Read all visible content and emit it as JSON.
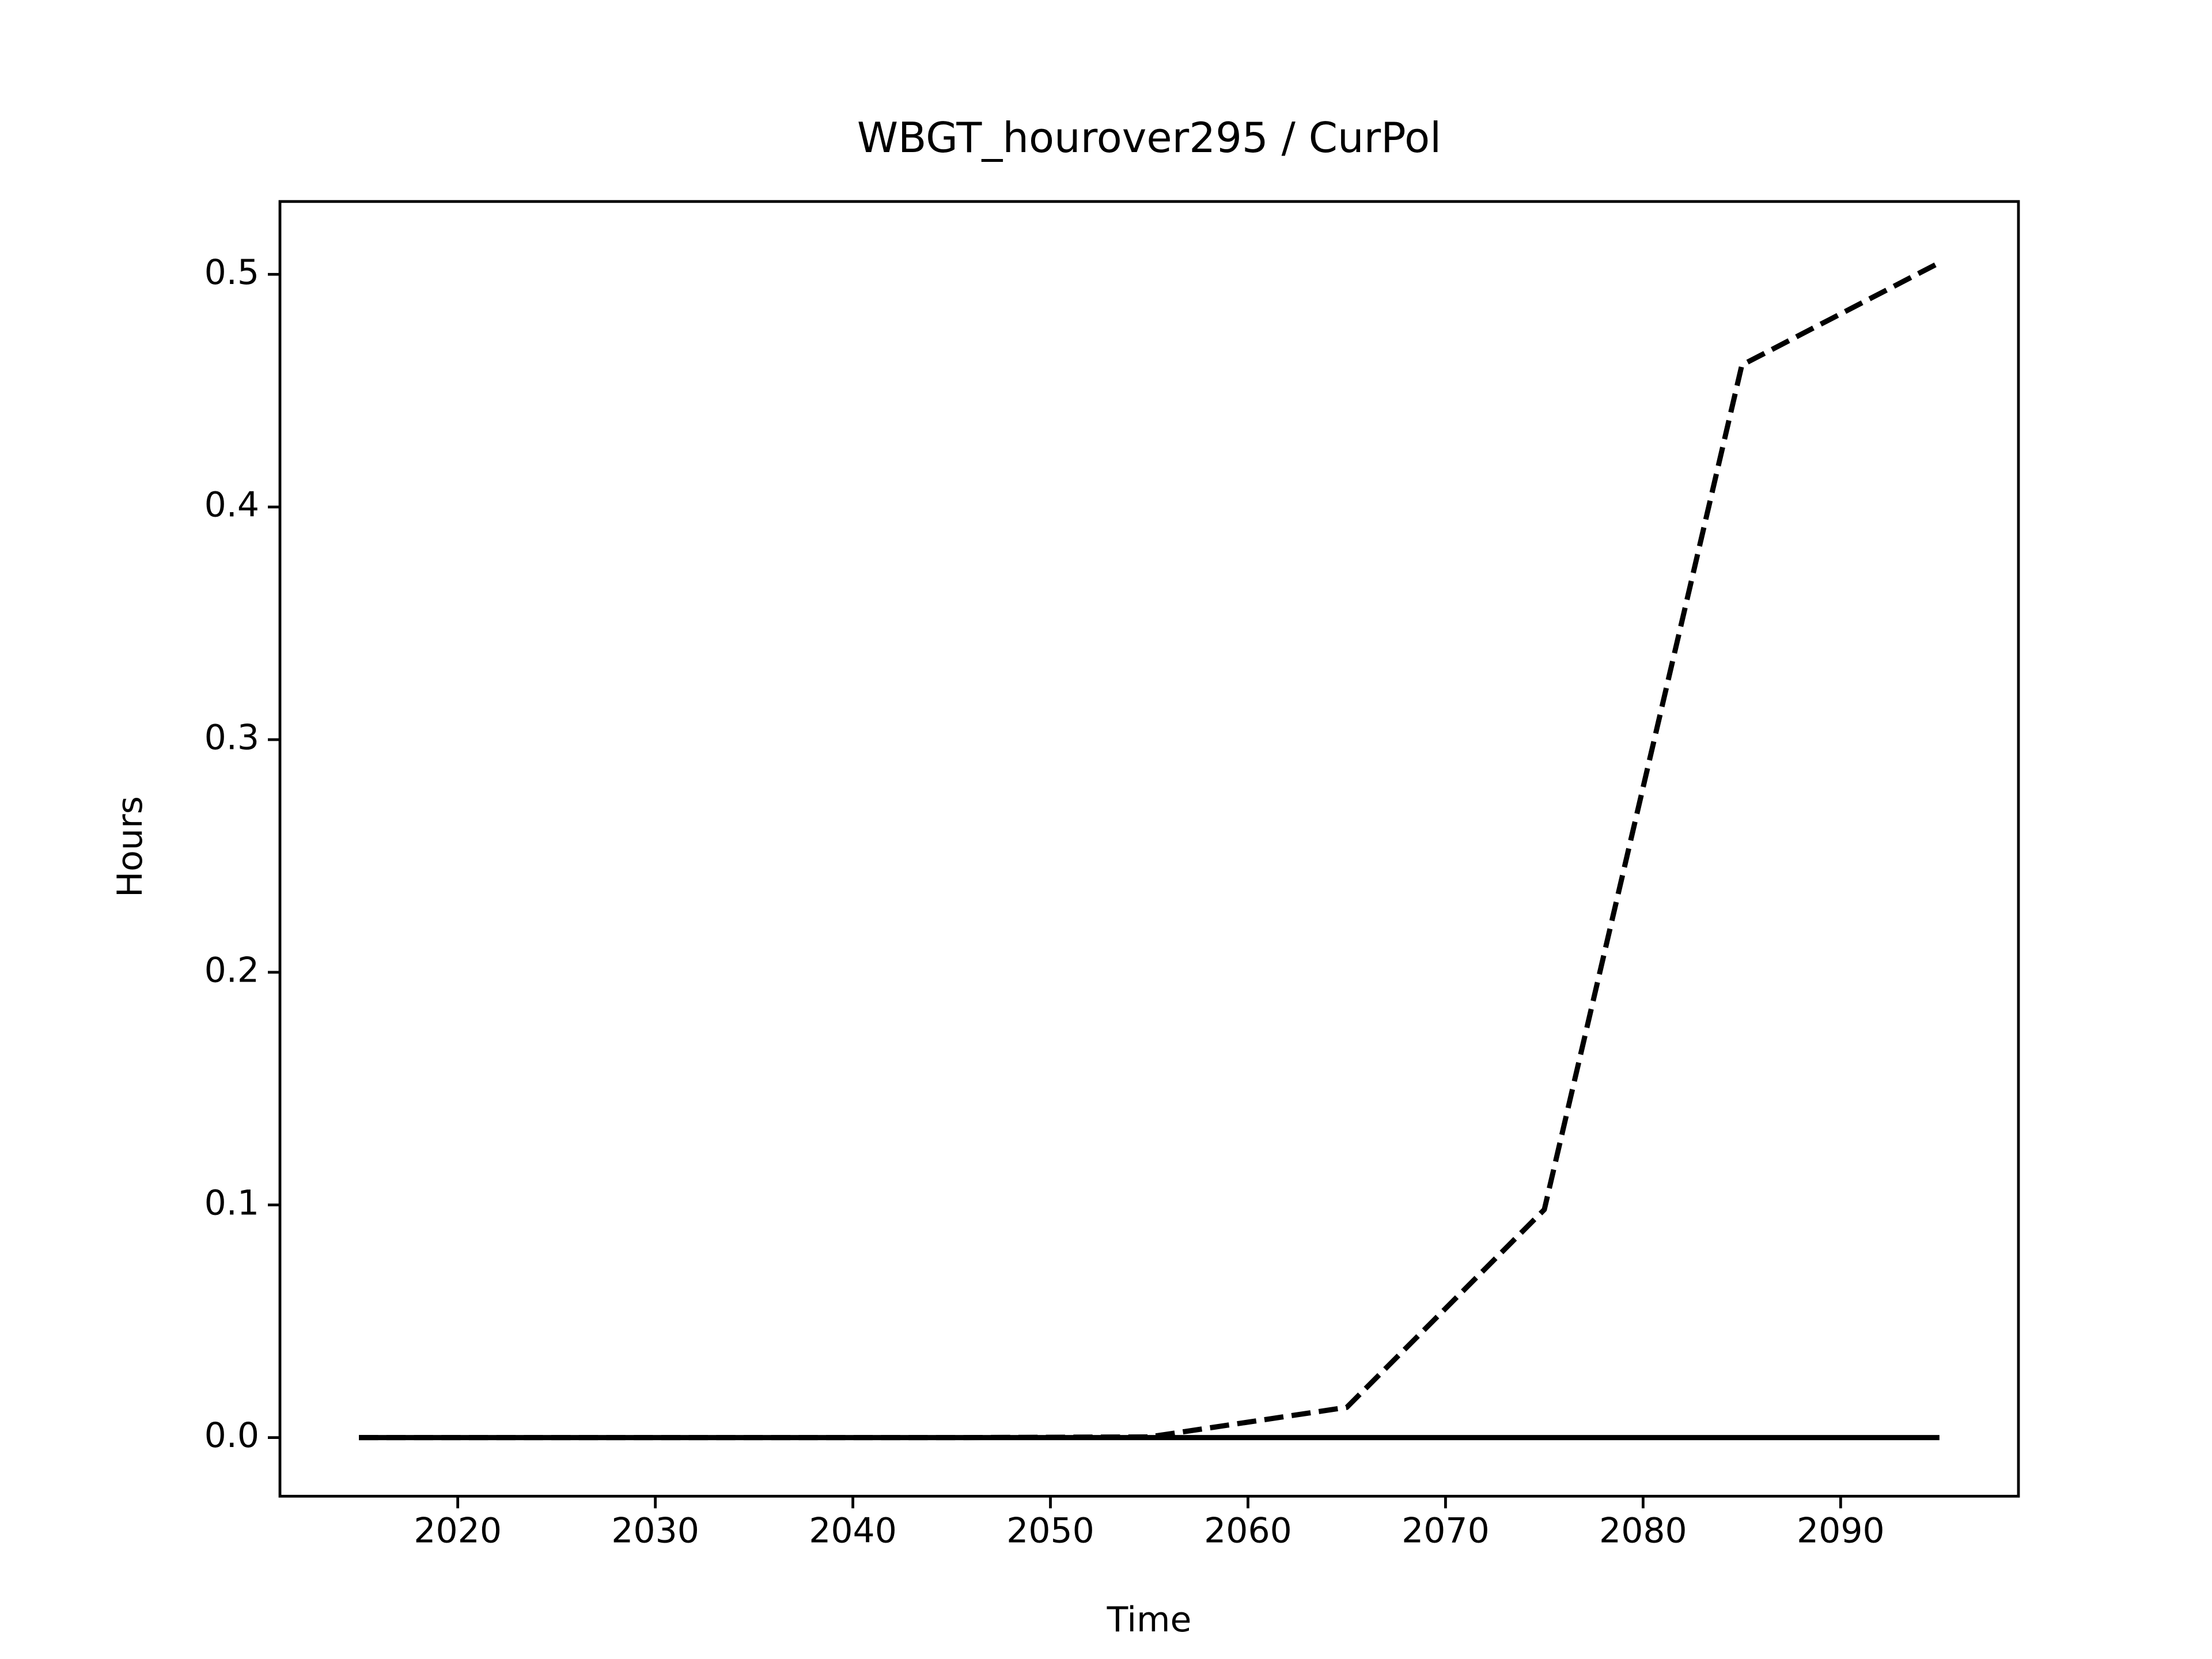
{
  "chart_data": {
    "type": "line",
    "title": "WBGT_hourover295 / CurPol",
    "x_label": "Time",
    "y_label": "Hours",
    "x": [
      2015,
      2025,
      2035,
      2045,
      2055,
      2065,
      2075,
      2085,
      2095
    ],
    "series": [
      {
        "color": "#000000",
        "linestyle": "dashed",
        "values": [
          0,
          0,
          0,
          0,
          0.0003,
          0.013,
          0.098,
          0.461,
          0.505
        ]
      },
      {
        "color": "#000000",
        "linestyle": "solid",
        "values": [
          0,
          0,
          0,
          0,
          0,
          0,
          0,
          0,
          0
        ]
      }
    ],
    "xlim": [
      2011,
      2099
    ],
    "xticks": [
      2020,
      2030,
      2040,
      2050,
      2060,
      2070,
      2080,
      2090
    ],
    "ylim": [
      -0.0252,
      0.5313
    ],
    "yticks": [
      {
        "value": 0,
        "label": "0.0"
      },
      0.1,
      0.2,
      0.3,
      0.4,
      0.5
    ],
    "grid": false
  }
}
